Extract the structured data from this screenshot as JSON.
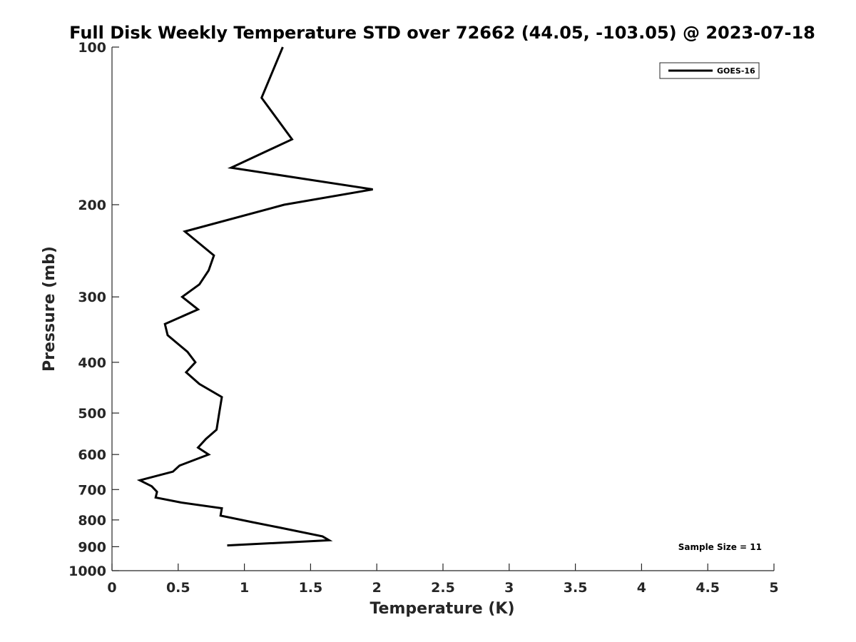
{
  "chart_data": {
    "type": "line",
    "title": "Full Disk Weekly Temperature STD over 72662 (44.05, -103.05) @ 2023-07-18",
    "xlabel": "Temperature (K)",
    "ylabel": "Pressure (mb)",
    "xlim": [
      0,
      5
    ],
    "ylim": [
      100,
      1000
    ],
    "y_scale": "log",
    "y_reversed": true,
    "grid": false,
    "x_ticks": [
      0,
      0.5,
      1,
      1.5,
      2,
      2.5,
      3,
      3.5,
      4,
      4.5,
      5
    ],
    "x_tick_labels": [
      "0",
      "0.5",
      "1",
      "1.5",
      "2",
      "2.5",
      "3",
      "3.5",
      "4",
      "4.5",
      "5"
    ],
    "y_ticks": [
      100,
      200,
      300,
      400,
      500,
      600,
      700,
      800,
      900,
      1000
    ],
    "y_tick_labels": [
      "100",
      "200",
      "300",
      "400",
      "500",
      "600",
      "700",
      "800",
      "900",
      "1000"
    ],
    "legend": {
      "position": "top-right",
      "entries": [
        "GOES-16"
      ]
    },
    "annotation": "Sample Size = 11",
    "series": [
      {
        "name": "GOES-16",
        "color": "#000000",
        "points": [
          {
            "t": 1.29,
            "p": 100
          },
          {
            "t": 1.13,
            "p": 125
          },
          {
            "t": 1.36,
            "p": 150
          },
          {
            "t": 0.9,
            "p": 170
          },
          {
            "t": 1.97,
            "p": 187
          },
          {
            "t": 1.3,
            "p": 200
          },
          {
            "t": 0.55,
            "p": 225
          },
          {
            "t": 0.77,
            "p": 250
          },
          {
            "t": 0.73,
            "p": 267
          },
          {
            "t": 0.66,
            "p": 284
          },
          {
            "t": 0.53,
            "p": 300
          },
          {
            "t": 0.65,
            "p": 317
          },
          {
            "t": 0.4,
            "p": 338
          },
          {
            "t": 0.42,
            "p": 355
          },
          {
            "t": 0.57,
            "p": 382
          },
          {
            "t": 0.63,
            "p": 400
          },
          {
            "t": 0.56,
            "p": 418
          },
          {
            "t": 0.66,
            "p": 440
          },
          {
            "t": 0.83,
            "p": 466
          },
          {
            "t": 0.81,
            "p": 500
          },
          {
            "t": 0.79,
            "p": 538
          },
          {
            "t": 0.71,
            "p": 560
          },
          {
            "t": 0.65,
            "p": 582
          },
          {
            "t": 0.73,
            "p": 600
          },
          {
            "t": 0.51,
            "p": 630
          },
          {
            "t": 0.46,
            "p": 647
          },
          {
            "t": 0.21,
            "p": 672
          },
          {
            "t": 0.3,
            "p": 690
          },
          {
            "t": 0.34,
            "p": 707
          },
          {
            "t": 0.33,
            "p": 725
          },
          {
            "t": 0.52,
            "p": 741
          },
          {
            "t": 0.83,
            "p": 760
          },
          {
            "t": 0.82,
            "p": 785
          },
          {
            "t": 1.06,
            "p": 808
          },
          {
            "t": 1.26,
            "p": 827
          },
          {
            "t": 1.59,
            "p": 860
          },
          {
            "t": 1.64,
            "p": 875
          },
          {
            "t": 0.87,
            "p": 895
          }
        ]
      }
    ]
  }
}
